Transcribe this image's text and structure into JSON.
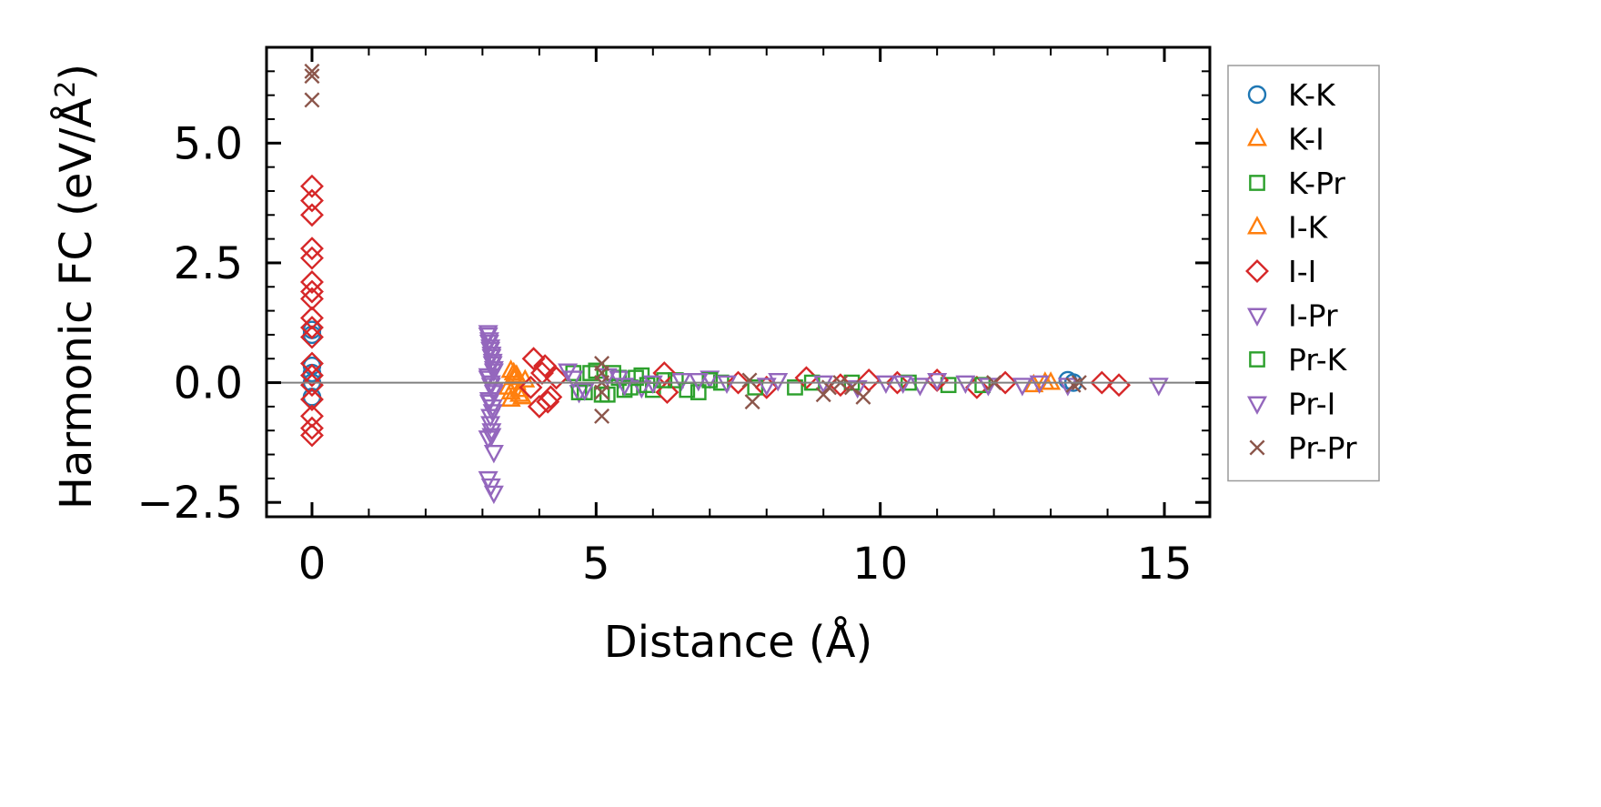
{
  "chart_data": {
    "type": "scatter",
    "xlabel": "Distance (Å)",
    "ylabel_main": "Harmonic FC (eV/Å",
    "ylabel_sup": "2",
    "ylabel_close": ")",
    "xlim": [
      -0.8,
      15.8
    ],
    "ylim": [
      -2.8,
      7.0
    ],
    "xticks": [
      0,
      5,
      10,
      15
    ],
    "xtick_labels": [
      "0",
      "5",
      "10",
      "15"
    ],
    "yticks": [
      -2.5,
      0.0,
      2.5,
      5.0
    ],
    "ytick_labels": [
      "−2.5",
      "0.0",
      "2.5",
      "5.0"
    ],
    "zero_line": true,
    "legend_position": "outside-right",
    "series": [
      {
        "name": "K-K",
        "marker": "circle",
        "color": "#1f77b4",
        "x": [
          0,
          0,
          0,
          0,
          0,
          0,
          13.3,
          13.4
        ],
        "y": [
          1.1,
          1.0,
          0.35,
          0.2,
          0.0,
          -0.3,
          0.05,
          0.0
        ]
      },
      {
        "name": "K-I",
        "marker": "triangle-up",
        "color": "#ff7f0e",
        "x": [
          3.5,
          3.55,
          3.6,
          3.65,
          3.7,
          3.5,
          3.6,
          12.7,
          12.9
        ],
        "y": [
          0.25,
          0.1,
          0.0,
          -0.15,
          -0.3,
          -0.2,
          0.15,
          -0.05,
          0.0
        ]
      },
      {
        "name": "K-Pr",
        "marker": "square",
        "color": "#2ca02c",
        "x": [
          4.6,
          4.8,
          5.0,
          5.2,
          5.4,
          5.6,
          5.8,
          6.0,
          6.4,
          6.8,
          7.2,
          8.5,
          9.5,
          11.2
        ],
        "y": [
          0.2,
          -0.2,
          0.25,
          -0.25,
          0.1,
          -0.1,
          0.15,
          -0.15,
          0.05,
          -0.2,
          0.0,
          -0.1,
          0.0,
          -0.05
        ]
      },
      {
        "name": "I-K",
        "marker": "triangle-up",
        "color": "#ff7f0e",
        "x": [
          3.45,
          3.55,
          3.65,
          3.75,
          3.5,
          13.0
        ],
        "y": [
          -0.1,
          0.2,
          -0.25,
          0.05,
          -0.35,
          0.0
        ]
      },
      {
        "name": "I-I",
        "marker": "diamond",
        "color": "#d62728",
        "x": [
          0,
          0,
          0,
          0,
          0,
          0,
          0,
          0,
          0,
          0,
          0,
          0,
          0,
          0,
          0,
          0,
          0,
          0,
          3.9,
          4.0,
          4.1,
          4.2,
          4.3,
          3.85,
          4.05,
          4.15,
          6.2,
          6.25,
          7.5,
          8.0,
          8.7,
          9.3,
          9.8,
          10.3,
          11.0,
          11.7,
          12.2,
          13.9,
          14.2
        ],
        "y": [
          4.1,
          3.8,
          3.5,
          2.8,
          2.6,
          2.1,
          1.9,
          1.75,
          1.35,
          1.15,
          0.95,
          0.4,
          0.15,
          -0.05,
          -0.35,
          -0.7,
          -0.95,
          -1.1,
          0.5,
          -0.5,
          0.35,
          -0.3,
          0.1,
          -0.1,
          0.2,
          -0.4,
          0.2,
          -0.2,
          0.0,
          -0.1,
          0.1,
          -0.05,
          0.05,
          0.0,
          0.05,
          -0.1,
          0.0,
          0.0,
          -0.05
        ]
      },
      {
        "name": "I-Pr",
        "marker": "triangle-down",
        "color": "#9467bd",
        "x": [
          3.1,
          3.12,
          3.14,
          3.16,
          3.18,
          3.2,
          3.1,
          3.15,
          3.2,
          3.12,
          3.18,
          3.14,
          3.16,
          3.1,
          3.2,
          4.5,
          4.7,
          5.4,
          5.8,
          6.5,
          7.0,
          8.2,
          10.1,
          10.7,
          11.5,
          12.5,
          14.9
        ],
        "y": [
          1.05,
          0.9,
          0.75,
          0.6,
          0.45,
          0.3,
          0.15,
          0.0,
          -0.15,
          -0.35,
          -0.5,
          -0.7,
          -1.0,
          -1.15,
          -1.45,
          0.25,
          -0.2,
          0.1,
          -0.1,
          0.05,
          0.1,
          0.05,
          0.0,
          -0.05,
          0.0,
          -0.05,
          -0.05
        ]
      },
      {
        "name": "Pr-K",
        "marker": "square",
        "color": "#2ca02c",
        "x": [
          4.7,
          4.9,
          5.1,
          5.3,
          5.5,
          5.7,
          5.9,
          6.2,
          6.6,
          7.0,
          7.8,
          8.8,
          10.5,
          11.8
        ],
        "y": [
          -0.2,
          0.2,
          -0.25,
          0.2,
          -0.15,
          0.1,
          -0.05,
          0.05,
          -0.15,
          0.05,
          -0.1,
          0.0,
          0.0,
          -0.05
        ]
      },
      {
        "name": "Pr-I",
        "marker": "triangle-down",
        "color": "#9467bd",
        "x": [
          3.1,
          3.12,
          3.14,
          3.16,
          3.18,
          3.2,
          3.1,
          3.15,
          3.2,
          3.12,
          3.18,
          3.14,
          3.16,
          3.1,
          3.15,
          3.2,
          4.6,
          4.8,
          5.2,
          5.5,
          6.0,
          6.8,
          7.3,
          8.0,
          9.0,
          9.6,
          10.4,
          11.0,
          11.9,
          12.8,
          13.3
        ],
        "y": [
          1.0,
          0.85,
          0.7,
          0.55,
          0.4,
          0.25,
          0.1,
          -0.05,
          -0.2,
          -0.4,
          -0.6,
          -0.85,
          -1.1,
          -2.0,
          -2.15,
          -2.3,
          0.1,
          -0.15,
          0.15,
          -0.05,
          0.0,
          0.05,
          0.0,
          -0.05,
          0.0,
          -0.1,
          0.0,
          0.05,
          -0.05,
          0.0,
          -0.05
        ]
      },
      {
        "name": "Pr-Pr",
        "marker": "x",
        "color": "#8c564b",
        "x": [
          0,
          0,
          0,
          5.1,
          5.1,
          5.1,
          5.1,
          5.1,
          7.7,
          7.75,
          9.0,
          9.1,
          9.3,
          9.5,
          9.7,
          12.0,
          13.4,
          13.5
        ],
        "y": [
          6.5,
          6.4,
          5.9,
          0.4,
          0.2,
          0.0,
          -0.2,
          -0.7,
          0.05,
          -0.4,
          -0.25,
          -0.1,
          0.0,
          -0.1,
          -0.3,
          0.0,
          -0.05,
          0.0
        ]
      }
    ]
  }
}
